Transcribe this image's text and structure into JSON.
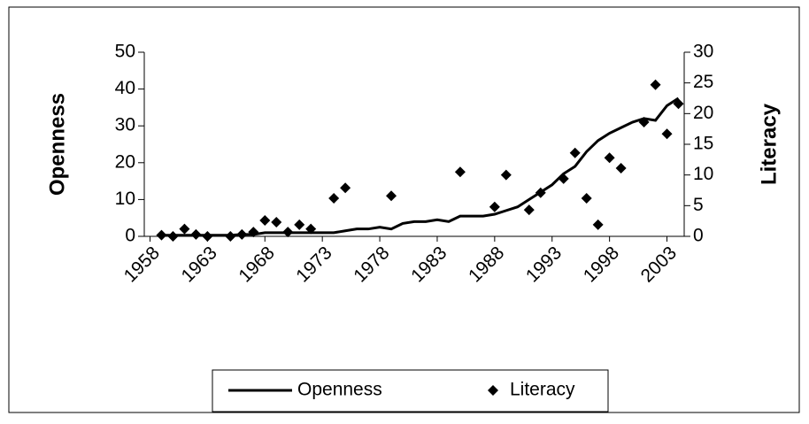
{
  "chart_data": {
    "type": "line-scatter",
    "x": [
      1958,
      1959,
      1960,
      1961,
      1962,
      1963,
      1964,
      1965,
      1966,
      1967,
      1968,
      1969,
      1970,
      1971,
      1972,
      1973,
      1974,
      1975,
      1976,
      1977,
      1978,
      1979,
      1980,
      1981,
      1982,
      1983,
      1984,
      1985,
      1986,
      1987,
      1988,
      1989,
      1990,
      1991,
      1992,
      1993,
      1994,
      1995,
      1996,
      1997,
      1998,
      1999,
      2000,
      2001,
      2002,
      2003,
      2004
    ],
    "xlim": [
      1957.5,
      2004.5
    ],
    "xticks": [
      1958,
      1963,
      1968,
      1973,
      1978,
      1983,
      1988,
      1993,
      1998,
      2003
    ],
    "y_label": "Openness",
    "y2_label": "Literacy",
    "ylim": [
      0,
      50
    ],
    "yticks": [
      0,
      10,
      20,
      30,
      40,
      50
    ],
    "y2lim": [
      0,
      30
    ],
    "y2ticks": [
      0,
      5,
      10,
      15,
      20,
      25,
      30
    ],
    "legend": "bottom",
    "series": [
      {
        "name": "Openness",
        "kind": "line",
        "color": "#000000",
        "values": [
          null,
          0.3,
          0.3,
          0.3,
          0.3,
          0.3,
          0.3,
          0.3,
          0.5,
          0.5,
          1,
          1,
          1,
          1,
          1,
          1,
          1,
          1.5,
          2,
          2,
          2.5,
          2,
          3.5,
          4,
          4,
          4.5,
          4,
          5.5,
          5.5,
          5.5,
          6,
          7,
          8,
          10,
          12,
          14,
          17,
          19,
          23,
          26,
          28,
          29.5,
          31,
          32,
          31.5,
          35.5,
          37.5
        ]
      },
      {
        "name": "Literacy",
        "kind": "scatter",
        "axis": "y2",
        "color": "#000000",
        "values": [
          null,
          0.2,
          0,
          1.2,
          0.3,
          0,
          null,
          0,
          0.3,
          0.7,
          2.6,
          2.3,
          0.7,
          1.9,
          1.2,
          null,
          6.2,
          7.9,
          null,
          null,
          null,
          6.6,
          null,
          null,
          null,
          null,
          null,
          10.5,
          null,
          null,
          4.8,
          10,
          null,
          4.3,
          7.1,
          null,
          9.4,
          13.6,
          6.2,
          1.9,
          12.8,
          11.1,
          null,
          18.6,
          24.7,
          16.7,
          21.6
        ]
      }
    ]
  }
}
